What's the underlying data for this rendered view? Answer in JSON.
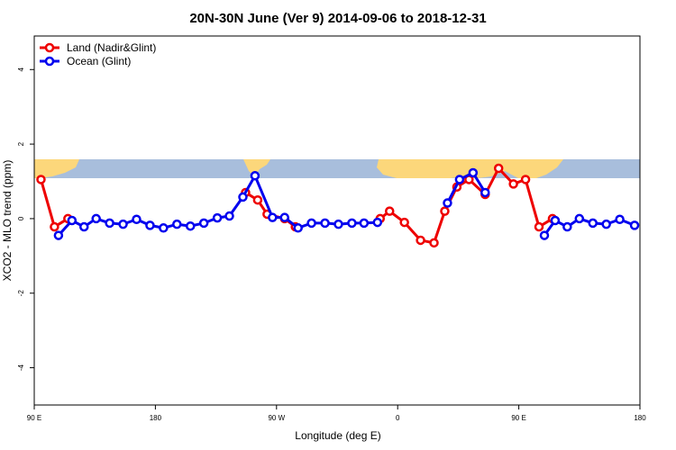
{
  "chart_data": {
    "type": "line",
    "title": "20N-30N June (Ver 9)   2014-09-06 to 2018-12-31",
    "x_label": "Longitude (deg E)",
    "y_label": "XCO2 - MLO trend (ppm)",
    "xlim": [
      90,
      540
    ],
    "ylim": [
      -5,
      4.9
    ],
    "xticks": [
      {
        "value": 90,
        "label": "90 E"
      },
      180,
      {
        "value": 270,
        "label": "90 W"
      },
      {
        "value": 360,
        "label": "0"
      },
      {
        "value": 450,
        "label": "90 E"
      },
      {
        "value": 540,
        "label": "180"
      }
    ],
    "yticks": [
      -4,
      -2,
      0,
      2,
      4
    ],
    "legend": "top-left",
    "series": [
      {
        "name": "Land (Nadir&Glint)",
        "color": "#ee0000",
        "x": [
          95,
          105,
          115,
          null,
          247,
          256,
          263,
          276,
          284,
          null,
          347,
          354,
          365,
          377,
          387,
          395,
          404,
          413,
          425,
          435,
          446,
          455,
          465,
          475
        ],
        "values": [
          1.05,
          -0.22,
          0.0,
          null,
          0.7,
          0.5,
          0.12,
          0.0,
          -0.22,
          null,
          0.0,
          0.2,
          -0.1,
          -0.58,
          -0.65,
          0.2,
          0.85,
          1.05,
          0.65,
          1.35,
          0.93,
          1.05,
          -0.22,
          0.0
        ]
      },
      {
        "name": "Ocean (Glint)",
        "color": "#0000ee",
        "x": [
          108,
          118,
          127,
          136,
          146,
          156,
          166,
          176,
          186,
          196,
          206,
          216,
          226,
          235,
          245,
          254,
          267,
          276,
          286,
          296,
          306,
          316,
          326,
          335,
          345,
          null,
          397,
          406,
          416,
          425,
          null,
          469,
          477,
          486,
          495,
          505,
          515,
          525,
          536
        ],
        "values": [
          -0.45,
          -0.05,
          -0.22,
          0.0,
          -0.12,
          -0.15,
          -0.02,
          -0.18,
          -0.25,
          -0.15,
          -0.2,
          -0.12,
          0.02,
          0.07,
          0.58,
          1.15,
          0.03,
          0.03,
          -0.25,
          -0.12,
          -0.12,
          -0.15,
          -0.12,
          -0.12,
          -0.1,
          null,
          0.42,
          1.05,
          1.23,
          0.7,
          null,
          -0.45,
          -0.05,
          -0.22,
          0.0,
          -0.12,
          -0.15,
          -0.02,
          -0.18
        ]
      }
    ]
  }
}
